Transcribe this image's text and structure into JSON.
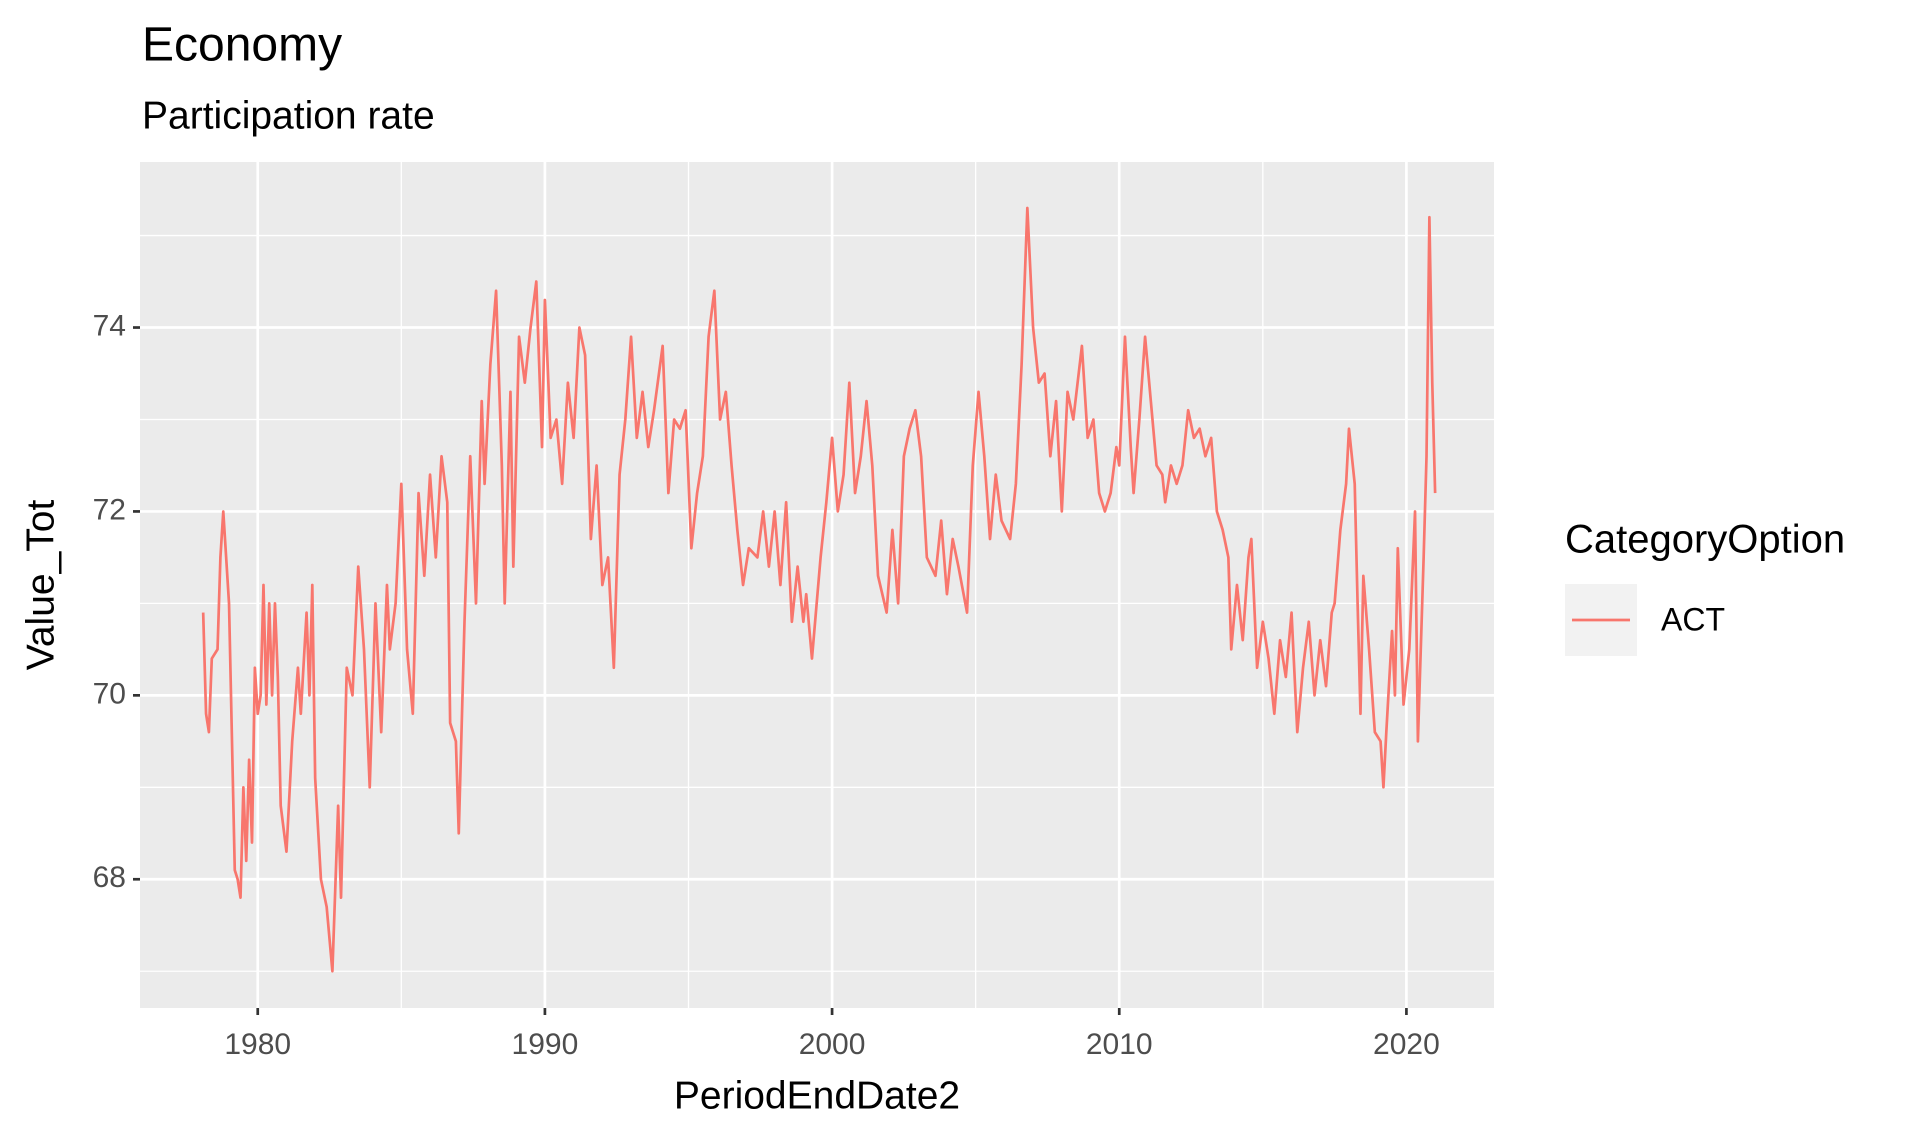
{
  "chart_data": {
    "type": "line",
    "title": "Economy",
    "subtitle": "Participation rate",
    "x_label": "PeriodEndDate2",
    "y_label": "Value_Tot",
    "legend_title": "CategoryOption",
    "x": [
      1978.1,
      1978.2,
      1978.3,
      1978.4,
      1978.6,
      1978.7,
      1978.8,
      1979.0,
      1979.2,
      1979.3,
      1979.4,
      1979.5,
      1979.6,
      1979.7,
      1979.8,
      1979.9,
      1980.0,
      1980.1,
      1980.2,
      1980.3,
      1980.4,
      1980.5,
      1980.6,
      1980.7,
      1980.8,
      1981.0,
      1981.2,
      1981.4,
      1981.5,
      1981.7,
      1981.8,
      1981.9,
      1982.0,
      1982.2,
      1982.4,
      1982.6,
      1982.8,
      1982.9,
      1983.1,
      1983.3,
      1983.5,
      1983.7,
      1983.9,
      1984.1,
      1984.3,
      1984.5,
      1984.6,
      1984.8,
      1985.0,
      1985.2,
      1985.4,
      1985.6,
      1985.8,
      1986.0,
      1986.2,
      1986.4,
      1986.6,
      1986.7,
      1986.9,
      1987.0,
      1987.2,
      1987.4,
      1987.6,
      1987.8,
      1987.9,
      1988.1,
      1988.3,
      1988.5,
      1988.6,
      1988.8,
      1988.9,
      1989.1,
      1989.3,
      1989.5,
      1989.7,
      1989.9,
      1990.0,
      1990.2,
      1990.4,
      1990.6,
      1990.8,
      1991.0,
      1991.2,
      1991.4,
      1991.6,
      1991.8,
      1992.0,
      1992.2,
      1992.4,
      1992.6,
      1992.8,
      1993.0,
      1993.2,
      1993.4,
      1993.6,
      1993.8,
      1994.1,
      1994.3,
      1994.5,
      1994.7,
      1994.9,
      1995.1,
      1995.3,
      1995.5,
      1995.7,
      1995.9,
      1996.1,
      1996.3,
      1996.5,
      1996.7,
      1996.9,
      1997.1,
      1997.4,
      1997.6,
      1997.8,
      1998.0,
      1998.2,
      1998.4,
      1998.6,
      1998.8,
      1999.0,
      1999.1,
      1999.3,
      1999.6,
      1999.8,
      2000.0,
      2000.2,
      2000.4,
      2000.6,
      2000.8,
      2001.0,
      2001.2,
      2001.4,
      2001.6,
      2001.9,
      2002.1,
      2002.3,
      2002.5,
      2002.7,
      2002.9,
      2003.1,
      2003.3,
      2003.6,
      2003.8,
      2004.0,
      2004.2,
      2004.4,
      2004.7,
      2004.9,
      2005.1,
      2005.3,
      2005.5,
      2005.7,
      2005.9,
      2006.2,
      2006.4,
      2006.6,
      2006.8,
      2007.0,
      2007.2,
      2007.4,
      2007.6,
      2007.8,
      2008.0,
      2008.2,
      2008.4,
      2008.7,
      2008.9,
      2009.1,
      2009.3,
      2009.5,
      2009.7,
      2009.9,
      2010.0,
      2010.2,
      2010.4,
      2010.5,
      2010.7,
      2010.9,
      2011.1,
      2011.3,
      2011.5,
      2011.6,
      2011.8,
      2012.0,
      2012.2,
      2012.4,
      2012.6,
      2012.8,
      2013.0,
      2013.2,
      2013.4,
      2013.6,
      2013.8,
      2013.9,
      2014.1,
      2014.3,
      2014.5,
      2014.6,
      2014.8,
      2015.0,
      2015.2,
      2015.4,
      2015.6,
      2015.8,
      2016.0,
      2016.2,
      2016.4,
      2016.6,
      2016.8,
      2017.0,
      2017.2,
      2017.4,
      2017.5,
      2017.7,
      2017.9,
      2018.0,
      2018.2,
      2018.3,
      2018.4,
      2018.5,
      2018.7,
      2018.9,
      2019.1,
      2019.2,
      2019.3,
      2019.5,
      2019.6,
      2019.7,
      2019.9,
      2020.1,
      2020.3,
      2020.4,
      2020.6,
      2020.7,
      2020.8,
      2020.9,
      2021.0
    ],
    "series": [
      {
        "name": "ACT",
        "color": "#F8766D",
        "values": [
          70.9,
          69.8,
          69.6,
          70.4,
          70.5,
          71.5,
          72.0,
          71.0,
          68.1,
          68.0,
          67.8,
          69.0,
          68.2,
          69.3,
          68.4,
          70.3,
          69.8,
          70.0,
          71.2,
          69.9,
          71.0,
          70.0,
          71.0,
          70.2,
          68.8,
          68.3,
          69.5,
          70.3,
          69.8,
          70.9,
          70.0,
          71.2,
          69.1,
          68.0,
          67.7,
          67.0,
          68.8,
          67.8,
          70.3,
          70.0,
          71.4,
          70.5,
          69.0,
          71.0,
          69.6,
          71.2,
          70.5,
          71.0,
          72.3,
          70.5,
          69.8,
          72.2,
          71.3,
          72.4,
          71.5,
          72.6,
          72.1,
          69.7,
          69.5,
          68.5,
          70.8,
          72.6,
          71.0,
          73.2,
          72.3,
          73.6,
          74.4,
          72.5,
          71.0,
          73.3,
          71.4,
          73.9,
          73.4,
          74.0,
          74.5,
          72.7,
          74.3,
          72.8,
          73.0,
          72.3,
          73.4,
          72.8,
          74.0,
          73.7,
          71.7,
          72.5,
          71.2,
          71.5,
          70.3,
          72.4,
          73.0,
          73.9,
          72.8,
          73.3,
          72.7,
          73.1,
          73.8,
          72.2,
          73.0,
          72.9,
          73.1,
          71.6,
          72.2,
          72.6,
          73.9,
          74.4,
          73.0,
          73.3,
          72.5,
          71.8,
          71.2,
          71.6,
          71.5,
          72.0,
          71.4,
          72.0,
          71.2,
          72.1,
          70.8,
          71.4,
          70.8,
          71.1,
          70.4,
          71.5,
          72.1,
          72.8,
          72.0,
          72.4,
          73.4,
          72.2,
          72.6,
          73.2,
          72.5,
          71.3,
          70.9,
          71.8,
          71.0,
          72.6,
          72.9,
          73.1,
          72.6,
          71.5,
          71.3,
          71.9,
          71.1,
          71.7,
          71.4,
          70.9,
          72.5,
          73.3,
          72.6,
          71.7,
          72.4,
          71.9,
          71.7,
          72.3,
          73.6,
          75.3,
          74.0,
          73.4,
          73.5,
          72.6,
          73.2,
          72.0,
          73.3,
          73.0,
          73.8,
          72.8,
          73.0,
          72.2,
          72.0,
          72.2,
          72.7,
          72.5,
          73.9,
          72.7,
          72.2,
          73.0,
          73.9,
          73.2,
          72.5,
          72.4,
          72.1,
          72.5,
          72.3,
          72.5,
          73.1,
          72.8,
          72.9,
          72.6,
          72.8,
          72.0,
          71.8,
          71.5,
          70.5,
          71.2,
          70.6,
          71.5,
          71.7,
          70.3,
          70.8,
          70.4,
          69.8,
          70.6,
          70.2,
          70.9,
          69.6,
          70.3,
          70.8,
          70.0,
          70.6,
          70.1,
          70.9,
          71.0,
          71.8,
          72.3,
          72.9,
          72.3,
          71.0,
          69.8,
          71.3,
          70.5,
          69.6,
          69.5,
          69.0,
          69.6,
          70.7,
          70.0,
          71.6,
          69.9,
          70.5,
          72.0,
          69.5,
          71.5,
          72.6,
          75.2,
          73.4,
          72.2
        ]
      }
    ],
    "xlim": [
      1975.9,
      2023.05
    ],
    "ylim": [
      66.6,
      75.8
    ],
    "xticks": [
      1980,
      1990,
      2000,
      2010,
      2020
    ],
    "yticks": [
      68,
      70,
      72,
      74
    ],
    "grid": true
  }
}
